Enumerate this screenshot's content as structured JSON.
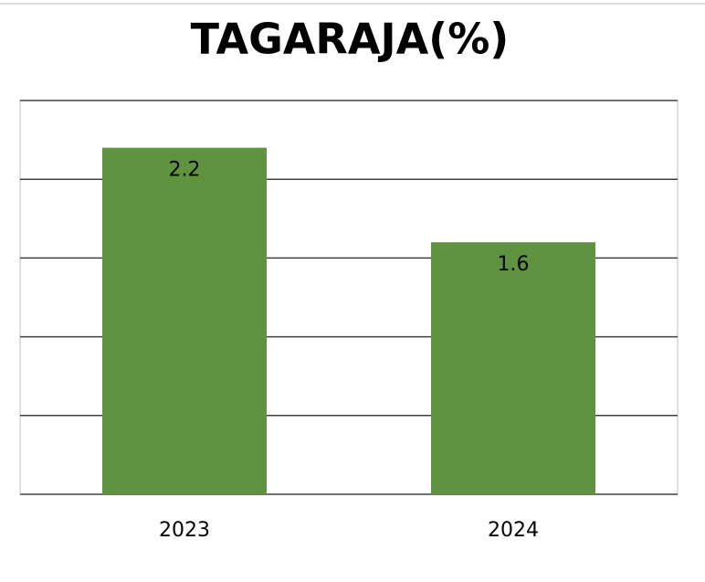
{
  "chart_data": {
    "type": "bar",
    "title": "TAGARAJA(%)",
    "categories": [
      "2023",
      "2024"
    ],
    "values": [
      2.2,
      1.6
    ],
    "color": "#5f9340",
    "ylim": [
      0,
      2.5
    ],
    "yticks": [
      0,
      0.5,
      1,
      1.5,
      2,
      2.5
    ],
    "grid": true
  }
}
